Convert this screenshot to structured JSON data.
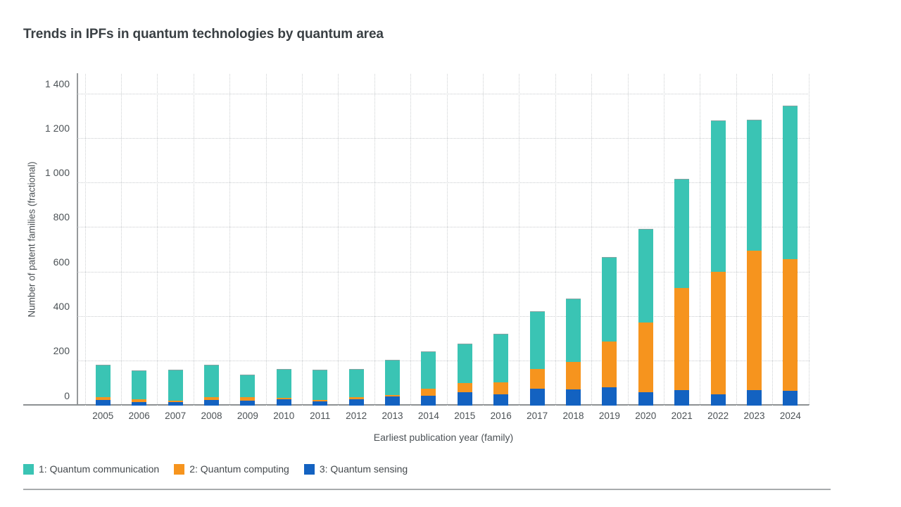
{
  "chart": {
    "title": "Trends in IPFs in quantum technologies by quantum area",
    "x_axis_title": "Earliest publication year (family)",
    "y_axis_title": "Number of patent families (fractional)"
  },
  "chart_data": {
    "type": "bar",
    "subtype": "stacked-vertical",
    "title": "Trends in IPFs in quantum technologies by quantum area",
    "xlabel": "Earliest publication year (family)",
    "ylabel": "Number of patent families (fractional)",
    "ylim": [
      0,
      1400
    ],
    "y_ticks": [
      0,
      200,
      400,
      600,
      800,
      1000,
      1200,
      1400
    ],
    "y_tick_labels": [
      "0",
      "200",
      "400",
      "600",
      "800",
      "1 000",
      "1 200",
      "1 400"
    ],
    "grid": "dotted horizontal and vertical gridlines on",
    "legend_position": "bottom-left",
    "stack_order_bottom_to_top": [
      "3: Quantum sensing",
      "2: Quantum computing",
      "1: Quantum communication"
    ],
    "categories": [
      "2005",
      "2006",
      "2007",
      "2008",
      "2009",
      "2010",
      "2011",
      "2012",
      "2013",
      "2014",
      "2015",
      "2016",
      "2017",
      "2018",
      "2019",
      "2020",
      "2021",
      "2022",
      "2023",
      "2024"
    ],
    "series": [
      {
        "name": "1: Quantum communication",
        "color": "#3ac4b4",
        "values": [
          140,
          126,
          134,
          141,
          98,
          126,
          133,
          123,
          157,
          163,
          174,
          214,
          257,
          281,
          376,
          416,
          486,
          676,
          585,
          685
        ]
      },
      {
        "name": "2: Quantum computing",
        "color": "#f6941e",
        "values": [
          14,
          12,
          8,
          14,
          16,
          8,
          5,
          8,
          6,
          32,
          41,
          53,
          88,
          124,
          206,
          314,
          458,
          549,
          625,
          592
        ]
      },
      {
        "name": "3: Quantum sensing",
        "color": "#1362c1",
        "values": [
          25,
          16,
          15,
          24,
          23,
          28,
          20,
          30,
          40,
          44,
          60,
          52,
          76,
          73,
          83,
          60,
          70,
          52,
          70,
          66
        ]
      }
    ],
    "totals": [
      179,
      154,
      157,
      179,
      137,
      162,
      158,
      161,
      203,
      239,
      275,
      319,
      421,
      478,
      665,
      790,
      1014,
      1277,
      1280,
      1343
    ]
  },
  "colors": {
    "teal": "#3ac4b4",
    "orange": "#f6941e",
    "blue": "#1362c1",
    "title_text": "#3a4044",
    "axis_text": "#4c5256",
    "axis_line": "#8d9193",
    "gridline": "#c9cccf",
    "bottom_rule": "#a8abad",
    "background": "#ffffff"
  }
}
